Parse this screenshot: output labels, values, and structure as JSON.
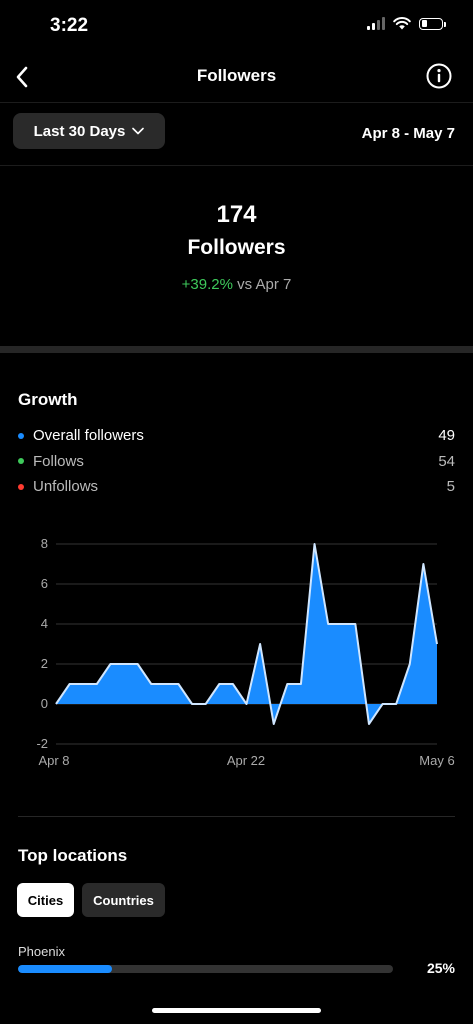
{
  "status_bar": {
    "time": "3:22"
  },
  "nav": {
    "title": "Followers",
    "back_icon": "chevron-left-icon",
    "info_icon": "info-icon"
  },
  "range": {
    "button_label": "Last 30 Days",
    "dates": "Apr 8 - May 7"
  },
  "summary": {
    "count": "174",
    "label": "Followers",
    "change": "+39.2%",
    "change_suffix": " vs Apr 7"
  },
  "growth": {
    "title": "Growth",
    "legend": [
      {
        "name": "Overall followers",
        "value": "49",
        "color": "#1a8cff"
      },
      {
        "name": "Follows",
        "value": "54",
        "color": "#3ec95b"
      },
      {
        "name": "Unfollows",
        "value": "5",
        "color": "#ff3b30"
      }
    ]
  },
  "chart_data": {
    "type": "area",
    "x_tick_labels": [
      "Apr 8",
      "Apr 22",
      "May 6"
    ],
    "y_ticks": [
      8,
      6,
      4,
      2,
      0,
      -2
    ],
    "ylim": [
      -2,
      8
    ],
    "grid": true,
    "series": [
      {
        "color": "#1a8cff",
        "values": [
          0,
          1,
          1,
          1,
          2,
          2,
          2,
          1,
          1,
          1,
          0,
          0,
          1,
          1,
          0,
          3,
          -1,
          1,
          1,
          8,
          4,
          4,
          4,
          -1,
          0,
          0,
          2,
          7,
          3
        ]
      }
    ]
  },
  "locations": {
    "title": "Top locations",
    "tabs": [
      {
        "label": "Cities",
        "active": true
      },
      {
        "label": "Countries",
        "active": false
      }
    ],
    "items": [
      {
        "name": "Phoenix",
        "percent_label": "25%",
        "fraction": 0.25
      }
    ]
  }
}
